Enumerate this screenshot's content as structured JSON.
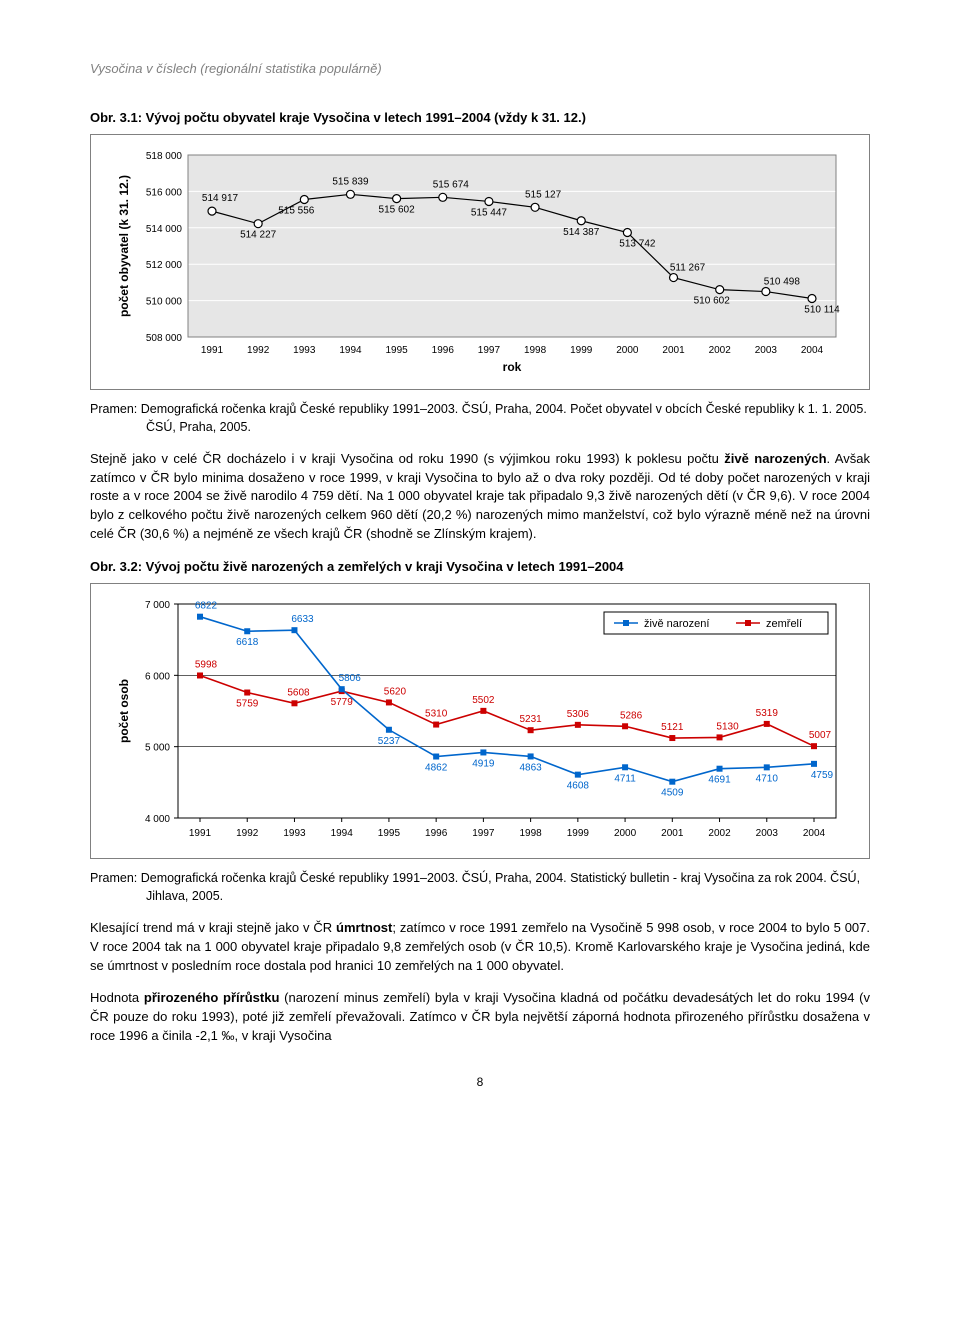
{
  "header": "Vysočina v číslech (regionální statistika populárně)",
  "page_number": "8",
  "fig31_title": "Obr. 3.1: Vývoj počtu obyvatel kraje Vysočina v letech 1991–2004 (vždy k 31. 12.)",
  "fig31_source": "Pramen: Demografická ročenka krajů České republiky 1991–2003. ČSÚ, Praha, 2004. Počet obyvatel v obcích České republiky k 1. 1. 2005. ČSÚ, Praha, 2005.",
  "chart31": {
    "type": "line",
    "ylabel": "počet obyvatel (k 31. 12.)",
    "xlabel": "rok",
    "label_fontsize": 12,
    "data_label_fontsize": 10,
    "tick_fontsize": 10,
    "background_color": "#ffffff",
    "plot_background": "#e6e6e6",
    "grid_color": "#ffffff",
    "line_color": "#000000",
    "line_width": 1.2,
    "marker_fill": "#ffffff",
    "marker_stroke": "#000000",
    "marker_radius": 4,
    "ylim": [
      508000,
      518000
    ],
    "ytick_step": 2000,
    "yticks": [
      "508 000",
      "510 000",
      "512 000",
      "514 000",
      "516 000",
      "518 000"
    ],
    "years": [
      "1991",
      "1992",
      "1993",
      "1994",
      "1995",
      "1996",
      "1997",
      "1998",
      "1999",
      "2000",
      "2001",
      "2002",
      "2003",
      "2004"
    ],
    "values": [
      514917,
      514227,
      515556,
      515839,
      515602,
      515674,
      515447,
      515127,
      514387,
      513742,
      511267,
      510602,
      510498,
      510114
    ],
    "labels": [
      "514 917",
      "514 227",
      "515 556",
      "515 839",
      "515 602",
      "515 674",
      "515 447",
      "515 127",
      "514 387",
      "513 742",
      "511 267",
      "510 602",
      "510 498",
      "510 114"
    ]
  },
  "para1": "Stejně jako v celé ČR docházelo i v kraji Vysočina od roku 1990 (s výjimkou roku 1993) k poklesu počtu živě narozených. Avšak zatímco v ČR bylo minima dosaženo v roce 1999, v kraji Vysočina to bylo až o dva roky později. Od té doby počet narozených v kraji roste a v roce 2004 se živě narodilo 4 759 dětí. Na 1 000 obyvatel kraje tak připadalo 9,3 živě narozených dětí (v ČR 9,6). V roce 2004 bylo z celkového počtu živě narozených celkem 960 dětí (20,2 %) narozených mimo manželství, což bylo výrazně méně než na úrovni celé ČR (30,6 %) a nejméně ze všech krajů ČR (shodně se Zlínským krajem).",
  "fig32_title": "Obr. 3.2: Vývoj počtu živě narozených a zemřelých v kraji Vysočina v letech 1991–2004",
  "fig32_source": "Pramen: Demografická ročenka krajů České republiky 1991–2003. ČSÚ, Praha, 2004. Statistický bulletin - kraj Vysočina za rok 2004. ČSÚ, Jihlava, 2005.",
  "chart32": {
    "type": "line",
    "ylabel": "počet osob",
    "label_fontsize": 12,
    "data_label_fontsize": 10,
    "tick_fontsize": 10,
    "background_color": "#ffffff",
    "grid_color": "#000000",
    "ylim": [
      4000,
      7000
    ],
    "ytick_step": 1000,
    "yticks": [
      "4 000",
      "5 000",
      "6 000",
      "7 000"
    ],
    "years": [
      "1991",
      "1992",
      "1993",
      "1994",
      "1995",
      "1996",
      "1997",
      "1998",
      "1999",
      "2000",
      "2001",
      "2002",
      "2003",
      "2004"
    ],
    "legend_box_border": "#000000",
    "legend": [
      {
        "label": "živě narození",
        "color": "#0066cc",
        "marker_fill": "#0066cc"
      },
      {
        "label": "zemřelí",
        "color": "#cc0000",
        "marker_fill": "#cc0000"
      }
    ],
    "series_births": {
      "color": "#0066cc",
      "marker_fill": "#0066cc",
      "marker_radius": 3,
      "line_width": 1.6,
      "values": [
        6822,
        6618,
        6633,
        5806,
        5237,
        4862,
        4919,
        4863,
        4608,
        4711,
        4509,
        4691,
        4710,
        4759
      ],
      "labels": [
        "6822",
        "6618",
        "6633",
        "5806",
        "5237",
        "4862",
        "4919",
        "4863",
        "4608",
        "4711",
        "4509",
        "4691",
        "4710",
        "4759"
      ]
    },
    "series_deaths": {
      "color": "#cc0000",
      "marker_fill": "#cc0000",
      "marker_radius": 3,
      "line_width": 1.6,
      "values": [
        5998,
        5759,
        5608,
        5779,
        5620,
        5310,
        5502,
        5231,
        5306,
        5286,
        5121,
        5130,
        5319,
        5007
      ],
      "labels": [
        "5998",
        "5759",
        "5608",
        "5779",
        "5620",
        "5310",
        "5502",
        "5231",
        "5306",
        "5286",
        "5121",
        "5130",
        "5319",
        "5007"
      ]
    }
  },
  "para2": "Klesající trend má v kraji stejně jako v ČR úmrtnost; zatímco v roce 1991 zemřelo na Vysočině 5 998 osob, v roce 2004 to bylo 5 007. V roce 2004 tak na 1 000 obyvatel kraje připadalo 9,8 zemřelých osob (v ČR 10,5). Kromě Karlovarského kraje je Vysočina jediná, kde se úmrtnost v posledním roce dostala pod hranici 10 zemřelých na 1 000 obyvatel.",
  "para3": "Hodnota přirozeného přírůstku (narození minus zemřelí) byla v kraji Vysočina kladná od počátku devadesátých let do roku 1994 (v ČR pouze do roku 1993), poté již zemřelí převažovali. Zatímco v ČR byla největší záporná hodnota přirozeného přírůstku dosažena v roce 1996 a činila -2,1 ‰, v kraji Vysočina"
}
